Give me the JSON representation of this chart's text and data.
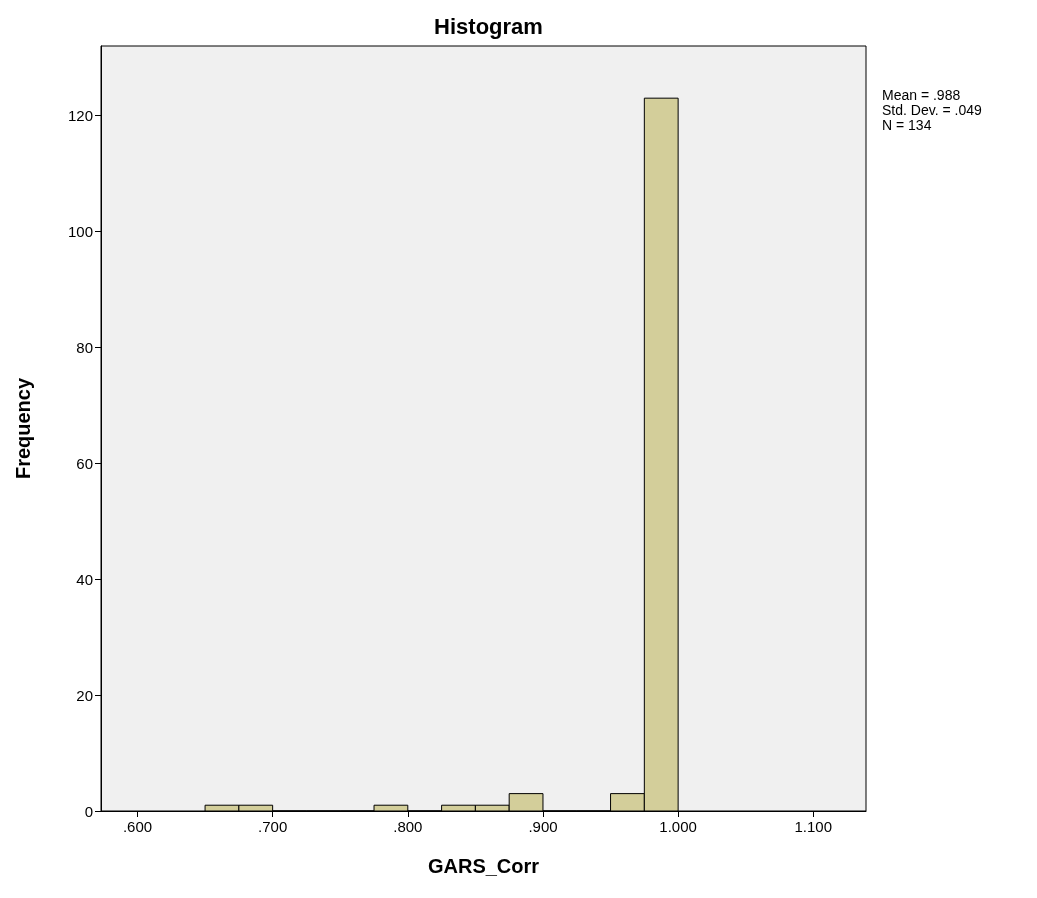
{
  "chart_data": {
    "type": "histogram",
    "title": "Histogram",
    "xlabel": "GARS_Corr",
    "ylabel": "Frequency",
    "bins": [
      0.65,
      0.675,
      0.7,
      0.725,
      0.75,
      0.775,
      0.8,
      0.825,
      0.85,
      0.875,
      0.9,
      0.925,
      0.95,
      0.975,
      1.0
    ],
    "values": [
      1,
      1,
      0,
      0,
      0,
      1,
      0,
      1,
      1,
      3,
      0,
      0,
      3,
      123
    ],
    "color": "#d3ce9a",
    "xlim": [
      0.573,
      1.139
    ],
    "xticks": [
      {
        "value": 0.6,
        "label": ".600"
      },
      {
        "value": 0.7,
        "label": ".700"
      },
      {
        "value": 0.8,
        "label": ".800"
      },
      {
        "value": 0.9,
        "label": ".900"
      },
      {
        "value": 1.0,
        "label": "1.000"
      },
      {
        "value": 1.1,
        "label": "1.100"
      }
    ],
    "ylim": [
      0,
      132
    ],
    "yticks": [
      0,
      20,
      40,
      60,
      80,
      100,
      120
    ],
    "grid": false,
    "annotations": [
      "Mean = .988",
      "Std. Dev. = .049",
      "N = 134"
    ]
  }
}
